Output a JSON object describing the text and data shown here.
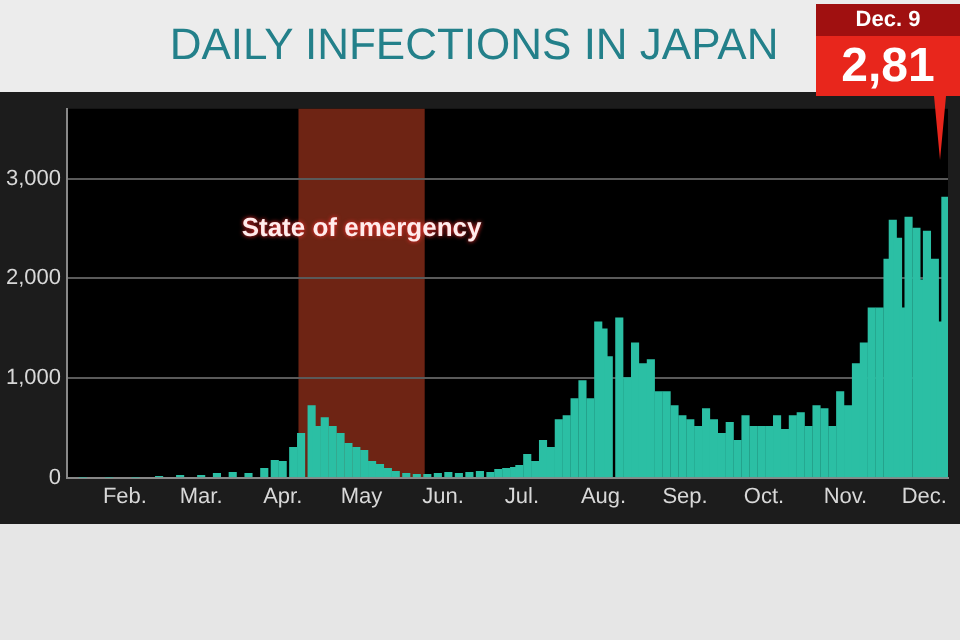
{
  "chart_data": {
    "type": "bar",
    "title": "DAILY INFECTIONS IN JAPAN",
    "color": "#2bbfa4",
    "x": [
      "--01-16",
      "--01-26",
      "--02-05",
      "--02-14",
      "--02-22",
      "--03-01",
      "--03-07",
      "--03-13",
      "--03-19",
      "--03-25",
      "--03-29",
      "--04-01",
      "--04-05",
      "--04-08",
      "--04-12",
      "--04-14",
      "--04-17",
      "--04-20",
      "--04-23",
      "--04-26",
      "--04-29",
      "--05-02",
      "--05-05",
      "--05-08",
      "--05-11",
      "--05-14",
      "--05-18",
      "--05-22",
      "--05-26",
      "--05-30",
      "--06-03",
      "--06-07",
      "--06-11",
      "--06-15",
      "--06-19",
      "--06-22",
      "--06-25",
      "--06-28",
      "--06-30",
      "--07-03",
      "--07-06",
      "--07-09",
      "--07-12",
      "--07-15",
      "--07-18",
      "--07-21",
      "--07-24",
      "--07-27",
      "--07-30",
      "--08-01",
      "--08-03",
      "--08-07",
      "--08-10",
      "--08-13",
      "--08-16",
      "--08-19",
      "--08-22",
      "--08-25",
      "--08-28",
      "--08-31",
      "--09-03",
      "--09-06",
      "--09-09",
      "--09-12",
      "--09-15",
      "--09-18",
      "--09-21",
      "--09-24",
      "--09-27",
      "--09-30",
      "--10-03",
      "--10-06",
      "--10-09",
      "--10-12",
      "--10-15",
      "--10-18",
      "--10-21",
      "--10-24",
      "--10-27",
      "--10-30",
      "--11-02",
      "--11-05",
      "--11-08",
      "--11-11",
      "--11-14",
      "--11-17",
      "--11-19",
      "--11-21",
      "--11-23",
      "--11-25",
      "--11-28",
      "--11-30",
      "--12-02",
      "--12-05",
      "--12-07",
      "--12-09"
    ],
    "values": [
      0,
      0,
      0,
      10,
      20,
      20,
      40,
      50,
      40,
      90,
      170,
      160,
      300,
      440,
      720,
      510,
      600,
      510,
      440,
      340,
      300,
      270,
      160,
      130,
      90,
      60,
      40,
      30,
      30,
      40,
      50,
      40,
      50,
      60,
      50,
      80,
      90,
      100,
      120,
      230,
      160,
      370,
      300,
      580,
      620,
      790,
      970,
      790,
      1560,
      1490,
      1210,
      1600,
      1000,
      1350,
      1140,
      1180,
      860,
      860,
      720,
      620,
      580,
      510,
      690,
      580,
      440,
      550,
      370,
      620,
      510,
      510,
      510,
      620,
      480,
      620,
      650,
      510,
      720,
      690,
      510,
      860,
      720,
      1140,
      1350,
      1700,
      1700,
      2190,
      2580,
      2400,
      1700,
      2610,
      2500,
      1980,
      2470,
      2190,
      1560,
      2810
    ],
    "xlim": [
      "--01-10",
      "--12-10"
    ],
    "xticks": [
      {
        "value": "--02-01",
        "label": "Feb."
      },
      {
        "value": "--03-01",
        "label": "Mar."
      },
      {
        "value": "--04-01",
        "label": "Apr."
      },
      {
        "value": "--05-01",
        "label": "May"
      },
      {
        "value": "--06-01",
        "label": "Jun."
      },
      {
        "value": "--07-01",
        "label": "Jul."
      },
      {
        "value": "--08-01",
        "label": "Aug."
      },
      {
        "value": "--09-01",
        "label": "Sep."
      },
      {
        "value": "--10-01",
        "label": "Oct."
      },
      {
        "value": "--11-01",
        "label": "Nov."
      },
      {
        "value": "--12-01",
        "label": "Dec."
      }
    ],
    "ylim": [
      0,
      3700
    ],
    "yticks": [
      {
        "value": 0,
        "label": "0"
      },
      {
        "value": 1000,
        "label": "1,000"
      },
      {
        "value": 2000,
        "label": "2,000"
      },
      {
        "value": 3000,
        "label": "3,000"
      }
    ],
    "grid": "y",
    "bands": [
      {
        "axis": "x",
        "from": "--04-07",
        "to": "--05-25",
        "label": "State of emergency",
        "color": "#6e2414"
      }
    ],
    "annotations": [
      "Dec. 9",
      "2,81"
    ]
  }
}
